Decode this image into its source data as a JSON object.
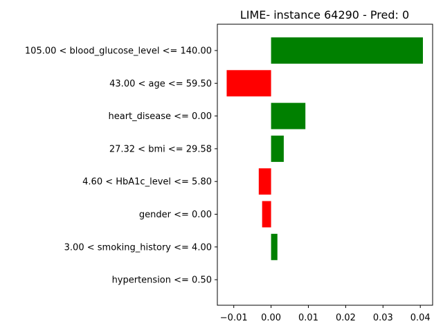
{
  "chart_data": {
    "type": "bar",
    "orientation": "horizontal",
    "title": "LIME- instance 64290 - Pred: 0",
    "xlabel": "",
    "ylabel": "",
    "categories": [
      "105.00 < blood_glucose_level <= 140.00",
      "43.00 < age <= 59.50",
      "heart_disease <= 0.00",
      "27.32 < bmi <= 29.58",
      "4.60 < HbA1c_level <= 5.80",
      "gender <= 0.00",
      "3.00 < smoking_history <= 4.00",
      "hypertension <= 0.50"
    ],
    "values": [
      0.0407,
      -0.0119,
      0.0092,
      0.0034,
      -0.0033,
      -0.0024,
      0.0017,
      0.0
    ],
    "xlim": [
      -0.0144,
      0.0433
    ],
    "xticks": [
      -0.01,
      0.0,
      0.01,
      0.02,
      0.03,
      0.04
    ],
    "xtick_labels": [
      "−0.01",
      "0.00",
      "0.01",
      "0.02",
      "0.03",
      "0.04"
    ],
    "grid": false,
    "legend": "none",
    "colors": {
      "positive": "#008000",
      "negative": "#ff0000"
    }
  }
}
